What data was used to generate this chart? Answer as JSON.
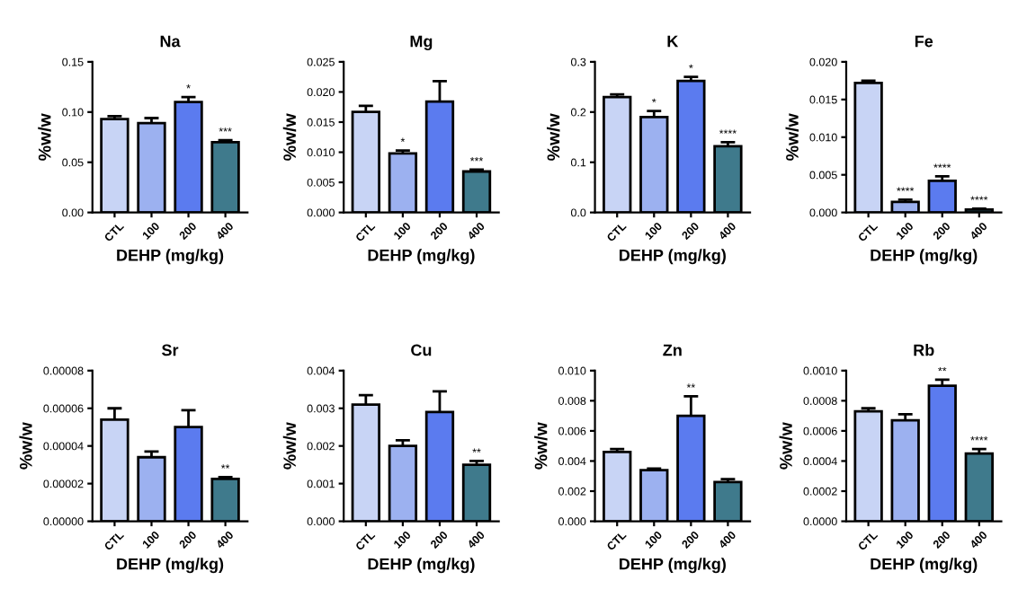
{
  "chart_data": [
    {
      "type": "bar",
      "title": "Na",
      "xlabel": "DEHP (mg/kg)",
      "ylabel": "%w/w",
      "categories": [
        "CTL",
        "100",
        "200",
        "400"
      ],
      "colors": [
        "#c8d4f5",
        "#9cb1f0",
        "#5b7bef",
        "#3f7a8c"
      ],
      "values": [
        0.093,
        0.089,
        0.11,
        0.07
      ],
      "errors": [
        [
          0.093,
          0.096
        ],
        [
          0.089,
          0.094
        ],
        [
          0.11,
          0.115
        ],
        [
          0.07,
          0.072
        ]
      ],
      "ylim": [
        0,
        0.15
      ],
      "yticks": [
        {
          "value": 0,
          "label": "0.00"
        },
        {
          "value": 0.05,
          "label": "0.05"
        },
        {
          "value": 0.1,
          "label": "0.10"
        },
        {
          "value": 0.15,
          "label": "0.15"
        }
      ],
      "annotations": [
        {
          "text": "*",
          "x": "200",
          "y": 0.115
        },
        {
          "text": "***",
          "x": "400",
          "y": 0.072
        }
      ]
    },
    {
      "type": "bar",
      "title": "Mg",
      "xlabel": "DEHP (mg/kg)",
      "ylabel": "%w/w",
      "categories": [
        "CTL",
        "100",
        "200",
        "400"
      ],
      "colors": [
        "#c8d4f5",
        "#9cb1f0",
        "#5b7bef",
        "#3f7a8c"
      ],
      "values": [
        0.0167,
        0.0098,
        0.0184,
        0.0068
      ],
      "errors": [
        [
          0.0167,
          0.0177
        ],
        [
          0.0098,
          0.0103
        ],
        [
          0.0184,
          0.0218
        ],
        [
          0.0068,
          0.0071
        ]
      ],
      "ylim": [
        0,
        0.025
      ],
      "yticks": [
        {
          "value": 0,
          "label": "0.000"
        },
        {
          "value": 0.005,
          "label": "0.005"
        },
        {
          "value": 0.01,
          "label": "0.010"
        },
        {
          "value": 0.015,
          "label": "0.015"
        },
        {
          "value": 0.02,
          "label": "0.020"
        },
        {
          "value": 0.025,
          "label": "0.025"
        }
      ],
      "annotations": [
        {
          "text": "*",
          "x": "100",
          "y": 0.0103
        },
        {
          "text": "***",
          "x": "400",
          "y": 0.0071
        }
      ]
    },
    {
      "type": "bar",
      "title": "K",
      "xlabel": "DEHP (mg/kg)",
      "ylabel": "%w/w",
      "categories": [
        "CTL",
        "100",
        "200",
        "400"
      ],
      "colors": [
        "#c8d4f5",
        "#9cb1f0",
        "#5b7bef",
        "#3f7a8c"
      ],
      "values": [
        0.23,
        0.19,
        0.262,
        0.132
      ],
      "errors": [
        [
          0.23,
          0.235
        ],
        [
          0.19,
          0.202
        ],
        [
          0.262,
          0.27
        ],
        [
          0.132,
          0.14
        ]
      ],
      "ylim": [
        0,
        0.3
      ],
      "yticks": [
        {
          "value": 0,
          "label": "0.0"
        },
        0.1,
        0.2,
        0.3
      ],
      "annotations": [
        {
          "text": "*",
          "x": "100",
          "y": 0.202
        },
        {
          "text": "*",
          "x": "200",
          "y": 0.27
        },
        {
          "text": "****",
          "x": "400",
          "y": 0.14
        }
      ]
    },
    {
      "type": "bar",
      "title": "Fe",
      "xlabel": "DEHP (mg/kg)",
      "ylabel": "%w/w",
      "categories": [
        "CTL",
        "100",
        "200",
        "400"
      ],
      "colors": [
        "#c8d4f5",
        "#9cb1f0",
        "#5b7bef",
        "#3f7a8c"
      ],
      "values": [
        0.0172,
        0.0014,
        0.0042,
        0.0004
      ],
      "errors": [
        [
          0.0172,
          0.0175
        ],
        [
          0.0014,
          0.0017
        ],
        [
          0.0042,
          0.0048
        ],
        [
          0.0004,
          0.0005
        ]
      ],
      "ylim": [
        0,
        0.02
      ],
      "yticks": [
        {
          "value": 0,
          "label": "0.000"
        },
        {
          "value": 0.005,
          "label": "0.005"
        },
        {
          "value": 0.01,
          "label": "0.010"
        },
        {
          "value": 0.015,
          "label": "0.015"
        },
        {
          "value": 0.02,
          "label": "0.020"
        }
      ],
      "annotations": [
        {
          "text": "****",
          "x": "100",
          "y": 0.0017
        },
        {
          "text": "****",
          "x": "200",
          "y": 0.0048
        },
        {
          "text": "****",
          "x": "400",
          "y": 0.0005
        }
      ]
    },
    {
      "type": "bar",
      "title": "Sr",
      "xlabel": "DEHP (mg/kg)",
      "ylabel": "%w/w",
      "categories": [
        "CTL",
        "100",
        "200",
        "400"
      ],
      "colors": [
        "#c8d4f5",
        "#9cb1f0",
        "#5b7bef",
        "#3f7a8c"
      ],
      "values": [
        5.4e-05,
        3.4e-05,
        5e-05,
        2.25e-05
      ],
      "errors": [
        [
          5.4e-05,
          6e-05
        ],
        [
          3.4e-05,
          3.7e-05
        ],
        [
          5e-05,
          5.9e-05
        ],
        [
          2.25e-05,
          2.35e-05
        ]
      ],
      "ylim": [
        0,
        8e-05
      ],
      "yticks": [
        {
          "value": 0,
          "label": "0.00000"
        },
        {
          "value": 2e-05,
          "label": "0.00002"
        },
        {
          "value": 4e-05,
          "label": "0.00004"
        },
        {
          "value": 6e-05,
          "label": "0.00006"
        },
        {
          "value": 8e-05,
          "label": "0.00008"
        }
      ],
      "annotations": [
        {
          "text": "**",
          "x": "400",
          "y": 2.35e-05
        }
      ]
    },
    {
      "type": "bar",
      "title": "Cu",
      "xlabel": "DEHP (mg/kg)",
      "ylabel": "%w/w",
      "categories": [
        "CTL",
        "100",
        "200",
        "400"
      ],
      "colors": [
        "#c8d4f5",
        "#9cb1f0",
        "#5b7bef",
        "#3f7a8c"
      ],
      "values": [
        0.0031,
        0.002,
        0.0029,
        0.0015
      ],
      "errors": [
        [
          0.0031,
          0.00335
        ],
        [
          0.002,
          0.00215
        ],
        [
          0.0029,
          0.00345
        ],
        [
          0.0015,
          0.0016
        ]
      ],
      "ylim": [
        0,
        0.004
      ],
      "yticks": [
        {
          "value": 0,
          "label": "0.000"
        },
        {
          "value": 0.001,
          "label": "0.001"
        },
        {
          "value": 0.002,
          "label": "0.002"
        },
        {
          "value": 0.003,
          "label": "0.003"
        },
        {
          "value": 0.004,
          "label": "0.004"
        }
      ],
      "annotations": [
        {
          "text": "**",
          "x": "400",
          "y": 0.0016
        }
      ]
    },
    {
      "type": "bar",
      "title": "Zn",
      "xlabel": "DEHP (mg/kg)",
      "ylabel": "%w/w",
      "categories": [
        "CTL",
        "100",
        "200",
        "400"
      ],
      "colors": [
        "#c8d4f5",
        "#9cb1f0",
        "#5b7bef",
        "#3f7a8c"
      ],
      "values": [
        0.0046,
        0.0034,
        0.007,
        0.0026
      ],
      "errors": [
        [
          0.0046,
          0.0048
        ],
        [
          0.0034,
          0.0035
        ],
        [
          0.007,
          0.0083
        ],
        [
          0.0026,
          0.0028
        ]
      ],
      "ylim": [
        0,
        0.01
      ],
      "yticks": [
        {
          "value": 0,
          "label": "0.000"
        },
        {
          "value": 0.002,
          "label": "0.002"
        },
        {
          "value": 0.004,
          "label": "0.004"
        },
        {
          "value": 0.006,
          "label": "0.006"
        },
        {
          "value": 0.008,
          "label": "0.008"
        },
        {
          "value": 0.01,
          "label": "0.010"
        }
      ],
      "annotations": [
        {
          "text": "**",
          "x": "200",
          "y": 0.0083
        }
      ]
    },
    {
      "type": "bar",
      "title": "Rb",
      "xlabel": "DEHP (mg/kg)",
      "ylabel": "%w/w",
      "categories": [
        "CTL",
        "100",
        "200",
        "400"
      ],
      "colors": [
        "#c8d4f5",
        "#9cb1f0",
        "#5b7bef",
        "#3f7a8c"
      ],
      "values": [
        0.00073,
        0.00067,
        0.0009,
        0.00045
      ],
      "errors": [
        [
          0.00073,
          0.00075
        ],
        [
          0.00067,
          0.00071
        ],
        [
          0.0009,
          0.00094
        ],
        [
          0.00045,
          0.00048
        ]
      ],
      "ylim": [
        0,
        0.001
      ],
      "yticks": [
        {
          "value": 0,
          "label": "0.0000"
        },
        {
          "value": 0.0002,
          "label": "0.0002"
        },
        {
          "value": 0.0004,
          "label": "0.0004"
        },
        {
          "value": 0.0006,
          "label": "0.0006"
        },
        {
          "value": 0.0008,
          "label": "0.0008"
        },
        {
          "value": 0.001,
          "label": "0.0010"
        }
      ],
      "annotations": [
        {
          "text": "**",
          "x": "200",
          "y": 0.00094
        },
        {
          "text": "****",
          "x": "400",
          "y": 0.00048
        }
      ]
    }
  ]
}
